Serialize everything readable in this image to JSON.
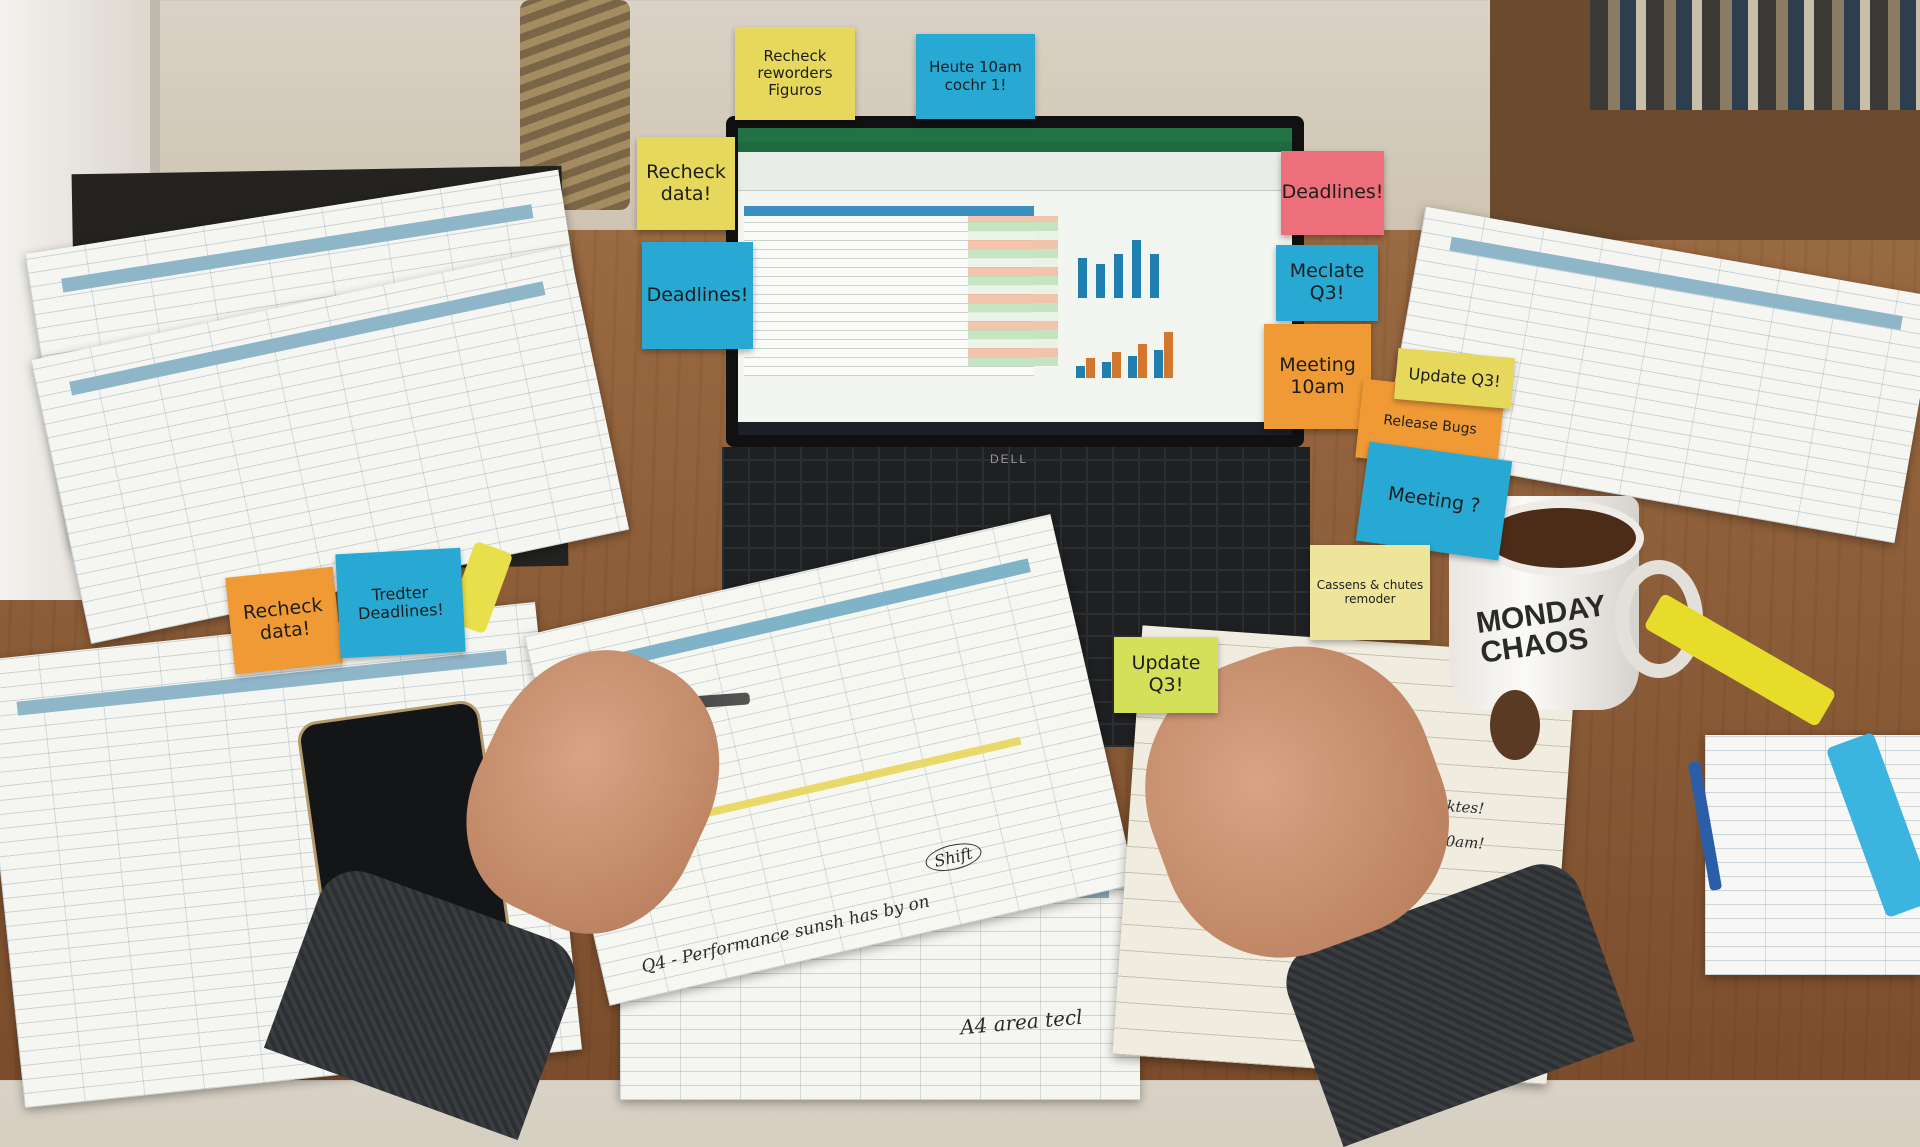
{
  "scene": {
    "colors": {
      "desk": "#8a5a35",
      "excel_green": "#217346",
      "sticky_yellow": "#e6d75d",
      "sticky_blue": "#27a9d3",
      "sticky_pink": "#ec6f7b",
      "sticky_orange": "#f09a36"
    },
    "laptop": {
      "brand": "DELL"
    },
    "mug": {
      "text": "MONDAY CHAOS"
    },
    "sticky_notes": [
      {
        "text": "Recheck reworders Figuros",
        "color": "yellow"
      },
      {
        "text": "Heute 10am cochr 1!",
        "color": "blue"
      },
      {
        "text": "Recheck data!",
        "color": "yellow"
      },
      {
        "text": "Deadlines!",
        "color": "blue"
      },
      {
        "text": "Deadlines!",
        "color": "pink"
      },
      {
        "text": "Meclate Q3!",
        "color": "blue"
      },
      {
        "text": "Meeting 10am",
        "color": "orange"
      },
      {
        "text": "Update Q3!",
        "color": "yellow"
      },
      {
        "text": "Release Bugs",
        "color": "orange"
      },
      {
        "text": "Meeting ?",
        "color": "blue"
      },
      {
        "text": "Cassens & chutes remoder",
        "color": "pale-yellow"
      },
      {
        "text": "Update Q3!",
        "color": "green-yellow"
      },
      {
        "text": "Recheck data!",
        "color": "orange"
      },
      {
        "text": "Tredter Deadlines!",
        "color": "blue"
      }
    ],
    "handwriting": {
      "sheet_caption": "Q4 - Performance sunsh has by on",
      "sheet_circle": "Shift",
      "sheet_footer": "A4 area tecl",
      "notebook_lines": [
        "Meeting 10am!",
        "Automarktes!"
      ]
    }
  }
}
